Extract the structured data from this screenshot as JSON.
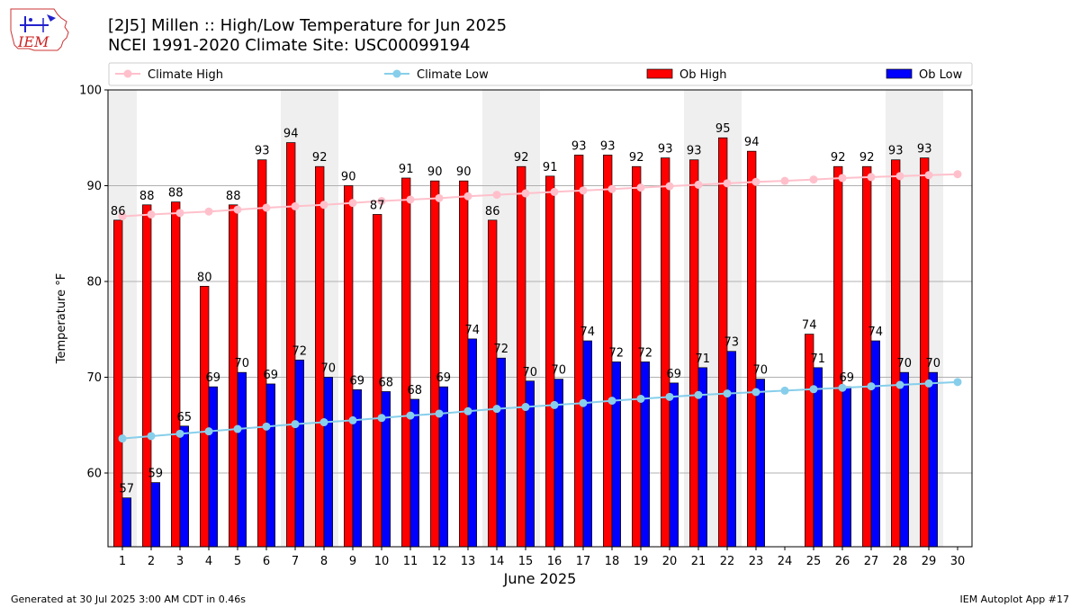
{
  "header": {
    "title": "[2J5] Millen :: High/Low Temperature for Jun 2025",
    "subtitle": "NCEI 1991-2020 Climate Site: USC00099194"
  },
  "logo": {
    "text": "IEM"
  },
  "footer": {
    "left": "Generated at 30 Jul 2025 3:00 AM CDT in 0.46s",
    "right": "IEM Autoplot App #17"
  },
  "chart_data": {
    "type": "bar",
    "xlabel": "June 2025",
    "ylabel": "Temperature °F",
    "ylim": [
      52.3,
      100
    ],
    "yticks": [
      60,
      70,
      80,
      90,
      100
    ],
    "grid": "horizontal",
    "legend_position": "top",
    "categories": [
      "1",
      "2",
      "3",
      "4",
      "5",
      "6",
      "7",
      "8",
      "9",
      "10",
      "11",
      "12",
      "13",
      "14",
      "15",
      "16",
      "17",
      "18",
      "19",
      "20",
      "21",
      "22",
      "23",
      "24",
      "25",
      "26",
      "27",
      "28",
      "29",
      "30"
    ],
    "weekend_shading_days": [
      1,
      7,
      8,
      14,
      15,
      21,
      22,
      28,
      29
    ],
    "series": [
      {
        "name": "Climate High",
        "kind": "line",
        "color": "#ffc0cb",
        "values": [
          86.8,
          87.0,
          87.15,
          87.3,
          87.5,
          87.7,
          87.85,
          88.0,
          88.2,
          88.4,
          88.55,
          88.7,
          88.9,
          89.05,
          89.2,
          89.35,
          89.5,
          89.65,
          89.8,
          89.95,
          90.1,
          90.25,
          90.4,
          90.5,
          90.65,
          90.8,
          90.9,
          91.0,
          91.1,
          91.2
        ]
      },
      {
        "name": "Climate Low",
        "kind": "line",
        "color": "#87ceeb",
        "values": [
          63.6,
          63.85,
          64.1,
          64.35,
          64.6,
          64.85,
          65.1,
          65.3,
          65.5,
          65.75,
          66.0,
          66.2,
          66.45,
          66.7,
          66.9,
          67.1,
          67.3,
          67.55,
          67.75,
          67.95,
          68.15,
          68.3,
          68.45,
          68.6,
          68.75,
          68.9,
          69.05,
          69.2,
          69.35,
          69.5
        ]
      },
      {
        "name": "Ob High",
        "kind": "bar",
        "color": "#ff0000",
        "values": [
          86.4,
          88.0,
          88.3,
          79.5,
          88.0,
          92.7,
          94.5,
          92.0,
          90.0,
          87.0,
          90.8,
          90.5,
          90.5,
          86.4,
          92.0,
          91.0,
          93.2,
          93.2,
          92.0,
          92.9,
          92.7,
          95.0,
          93.6,
          null,
          74.5,
          92.0,
          92.0,
          92.7,
          92.9,
          null
        ],
        "labels": [
          "86",
          "88",
          "88",
          "80",
          "88",
          "93",
          "94",
          "92",
          "90",
          "87",
          "91",
          "90",
          "90",
          "86",
          "92",
          "91",
          "93",
          "93",
          "92",
          "93",
          "93",
          "95",
          "94",
          "",
          "74",
          "92",
          "92",
          "93",
          "93",
          ""
        ]
      },
      {
        "name": "Ob Low",
        "kind": "bar",
        "color": "#0000ff",
        "values": [
          57.4,
          59.0,
          64.9,
          69.0,
          70.5,
          69.3,
          71.8,
          70.0,
          68.7,
          68.5,
          67.7,
          69.0,
          74.0,
          72.0,
          69.6,
          69.8,
          73.8,
          71.6,
          71.6,
          69.4,
          71.0,
          72.7,
          69.8,
          null,
          71.0,
          69.0,
          73.8,
          70.5,
          70.5,
          null
        ],
        "labels": [
          "57",
          "59",
          "65",
          "69",
          "70",
          "69",
          "72",
          "70",
          "69",
          "68",
          "68",
          "69",
          "74",
          "72",
          "70",
          "70",
          "74",
          "72",
          "72",
          "69",
          "71",
          "73",
          "70",
          "",
          "71",
          "69",
          "74",
          "70",
          "70",
          ""
        ]
      }
    ]
  }
}
